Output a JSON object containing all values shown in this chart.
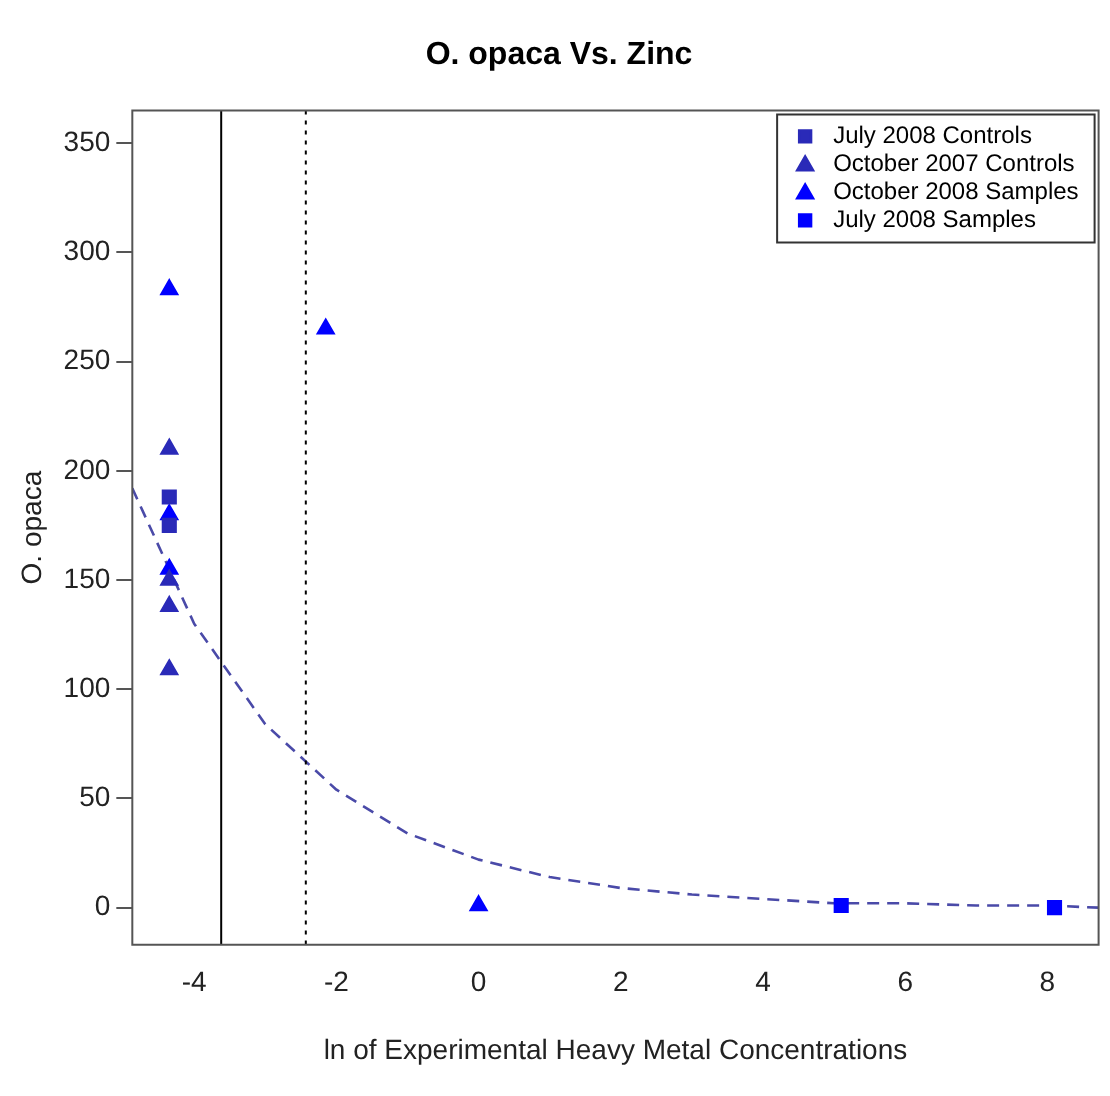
{
  "chart_data": {
    "type": "scatter",
    "title": "O. opaca Vs. Zinc",
    "xlabel": "ln of Experimental Heavy Metal Concentrations",
    "ylabel": "O. opaca",
    "xlim": [
      -4.87,
      8.72
    ],
    "ylim": [
      -17,
      365
    ],
    "xticks": [
      -4,
      -2,
      0,
      2,
      4,
      6,
      8
    ],
    "yticks": [
      0,
      50,
      100,
      150,
      200,
      250,
      300,
      350
    ],
    "grid": false,
    "legend": "top right",
    "series": [
      {
        "name": "July 2008 Controls",
        "color": "#2a2ab8",
        "marker": "square",
        "x": [
          -4.35,
          -4.35
        ],
        "values": [
          188,
          175
        ]
      },
      {
        "name": "October 2007 Controls",
        "color": "#2a2ab8",
        "marker": "triangle",
        "x": [
          -4.35,
          -4.35,
          -4.35,
          -4.35
        ],
        "values": [
          210,
          150,
          138,
          109
        ]
      },
      {
        "name": "October 2008 Samples",
        "color": "#0000ff",
        "marker": "triangle",
        "x": [
          -4.35,
          -4.35,
          -4.35,
          -2.15,
          0
        ],
        "values": [
          283,
          180,
          155,
          265,
          1
        ]
      },
      {
        "name": "July 2008 Samples",
        "color": "#0000ff",
        "marker": "square",
        "x": [
          5.1,
          8.1
        ],
        "values": [
          1,
          0
        ]
      },
      {
        "type": "line",
        "color": "#4a4aa8",
        "line_style": "dashed",
        "marker": "none",
        "x": [
          -4.87,
          -4,
          -3,
          -2,
          -1,
          0,
          1,
          2,
          3,
          4,
          5,
          6,
          7,
          8,
          8.72
        ],
        "values": [
          192,
          130,
          84,
          54,
          34,
          22,
          14,
          9,
          6,
          4,
          2,
          2,
          1,
          1,
          0
        ]
      }
    ],
    "ref_lines": [
      {
        "axis": "x",
        "value": -3.62,
        "color": "#000000",
        "line_style": "solid"
      },
      {
        "axis": "x",
        "value": -2.43,
        "color": "#000000",
        "line_style": "dotted"
      }
    ]
  }
}
